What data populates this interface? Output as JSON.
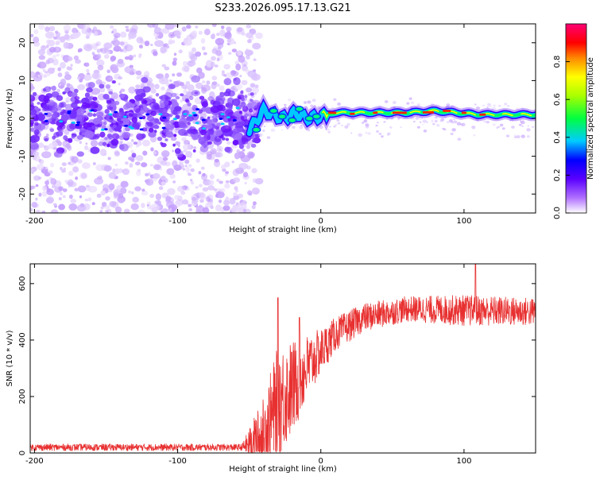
{
  "title": "S233.2026.095.17.13.G21",
  "chart_data": [
    {
      "type": "heatmap",
      "xlabel": "Height of straight line (km)",
      "ylabel": "Frequency (Hz)",
      "xlim": [
        -203,
        150
      ],
      "ylim": [
        -25,
        25
      ],
      "xticks": [
        -200,
        -100,
        0,
        100
      ],
      "xtick_labels": [
        "-200",
        "-100",
        "0",
        "100"
      ],
      "yticks": [
        20,
        10,
        0,
        -10,
        -20
      ],
      "ytick_labels": [
        "20",
        "10",
        "0",
        "-10",
        "-20"
      ],
      "colorbar": {
        "label": "Normalized spectral amplitude",
        "range": [
          0.0,
          1.0
        ],
        "ticks": [
          0.0,
          0.2,
          0.4,
          0.6,
          0.8
        ],
        "tick_labels": [
          "0.0",
          "0.2",
          "0.4",
          "0.6",
          "0.8"
        ],
        "colormap": [
          "#ffffff",
          "#7700ff",
          "#0000ff",
          "#00ffff",
          "#00ff00",
          "#ffff00",
          "#ff8800",
          "#ff0000",
          "#ff00aa"
        ]
      },
      "ridge": [
        {
          "x": -50,
          "f": -3.0
        },
        {
          "x": -40,
          "f": 2.0
        },
        {
          "x": -30,
          "f": 0.5
        },
        {
          "x": -25,
          "f": 0.0
        },
        {
          "x": -18,
          "f": 1.5
        },
        {
          "x": -10,
          "f": 0.0
        },
        {
          "x": 0,
          "f": 0.5
        },
        {
          "x": 10,
          "f": 1.5
        },
        {
          "x": 30,
          "f": 1.5
        },
        {
          "x": 60,
          "f": 1.5
        },
        {
          "x": 80,
          "f": 2.0
        },
        {
          "x": 95,
          "f": 1.5
        },
        {
          "x": 110,
          "f": 1.0
        },
        {
          "x": 130,
          "f": 1.0
        },
        {
          "x": 150,
          "f": 1.0
        }
      ]
    },
    {
      "type": "line",
      "xlabel": "Height of straight line (km)",
      "ylabel": "SNR (10 * v/v)",
      "xlim": [
        -203,
        150
      ],
      "ylim": [
        0,
        670
      ],
      "xticks": [
        -200,
        -100,
        0,
        100
      ],
      "xtick_labels": [
        "-200",
        "-100",
        "0",
        "100"
      ],
      "yticks": [
        0,
        200,
        400,
        600
      ],
      "ytick_labels": [
        "0",
        "200",
        "400",
        "600"
      ],
      "series": [
        {
          "name": "SNR",
          "color": "#e83030",
          "envelope": [
            {
              "x": -203,
              "mean": 20,
              "noise": 12
            },
            {
              "x": -55,
              "mean": 20,
              "noise": 12
            },
            {
              "x": -40,
              "mean": 60,
              "noise": 140
            },
            {
              "x": -30,
              "mean": 180,
              "noise": 200
            },
            {
              "x": -20,
              "mean": 230,
              "noise": 170
            },
            {
              "x": -10,
              "mean": 300,
              "noise": 120
            },
            {
              "x": 0,
              "mean": 360,
              "noise": 80
            },
            {
              "x": 10,
              "mean": 420,
              "noise": 60
            },
            {
              "x": 30,
              "mean": 480,
              "noise": 50
            },
            {
              "x": 60,
              "mean": 510,
              "noise": 45
            },
            {
              "x": 100,
              "mean": 505,
              "noise": 55
            },
            {
              "x": 150,
              "mean": 500,
              "noise": 50
            }
          ],
          "peaks": [
            {
              "x": -30,
              "y": 550
            },
            {
              "x": -15,
              "y": 480
            },
            {
              "x": 108,
              "y": 670
            }
          ]
        }
      ]
    }
  ]
}
